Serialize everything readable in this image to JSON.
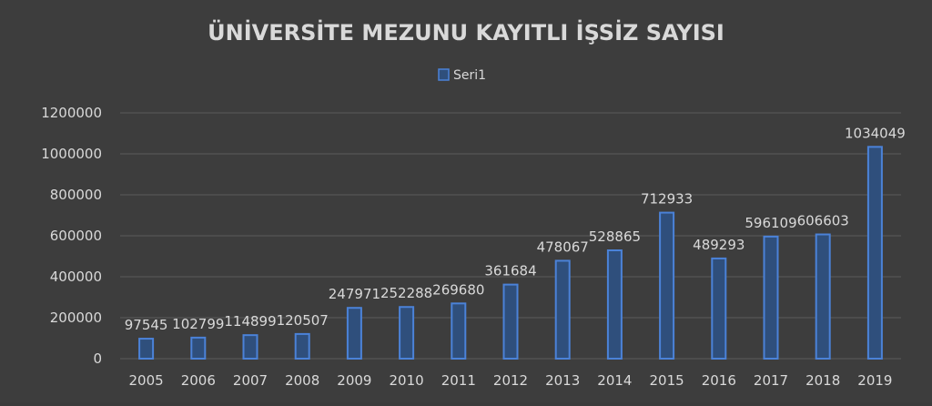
{
  "chart_data": {
    "type": "bar",
    "title": "ÜNİVERSİTE MEZUNU KAYITLI İŞSİZ SAYISI",
    "legend": {
      "position": "top",
      "entries": [
        "Seri1"
      ]
    },
    "categories": [
      "2005",
      "2006",
      "2007",
      "2008",
      "2009",
      "2010",
      "2011",
      "2012",
      "2013",
      "2014",
      "2015",
      "2016",
      "2017",
      "2018",
      "2019"
    ],
    "series": [
      {
        "name": "Seri1",
        "values": [
          97545,
          102799,
          114899,
          120507,
          247971,
          252288,
          269680,
          361684,
          478067,
          528865,
          712933,
          489293,
          596109,
          606603,
          1034049
        ],
        "labels": [
          "97545",
          "102799",
          "114899",
          "120507",
          "247971",
          "252288",
          "269680",
          "361684",
          "478067",
          "528865",
          "712933",
          "489293",
          "596109",
          "606603",
          "1034049"
        ]
      }
    ],
    "yticks": [
      "0",
      "200000",
      "400000",
      "600000",
      "800000",
      "1000000",
      "1200000"
    ],
    "ylim": [
      0,
      1200000
    ],
    "grid": true,
    "colors": {
      "background": "#3d3d3d",
      "bar_fill": "#2f4f7c",
      "bar_stroke": "#4b82d8",
      "text": "#d9d9d9",
      "grid": "#5a5a5a"
    }
  }
}
